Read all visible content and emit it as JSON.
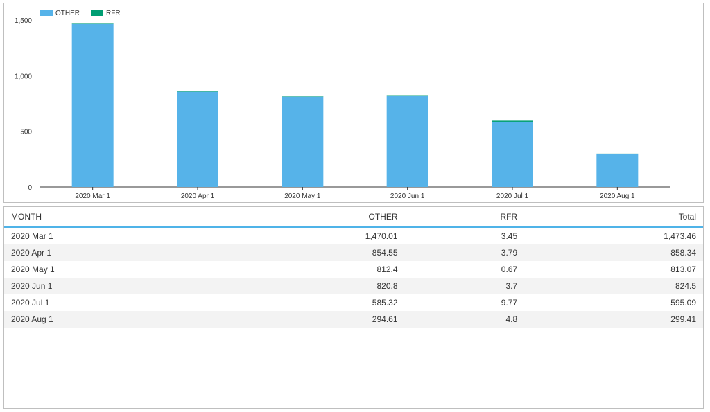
{
  "chart_data": {
    "type": "bar",
    "stacked": true,
    "categories": [
      "2020 Mar 1",
      "2020 Apr 1",
      "2020 May 1",
      "2020 Jun 1",
      "2020 Jul 1",
      "2020 Aug 1"
    ],
    "series": [
      {
        "name": "OTHER",
        "color": "#56b3e9",
        "values": [
          1470.01,
          854.55,
          812.4,
          820.8,
          585.32,
          294.61
        ]
      },
      {
        "name": "RFR",
        "color": "#009e73",
        "values": [
          3.45,
          3.79,
          0.67,
          3.7,
          9.77,
          4.8
        ]
      }
    ],
    "ylim": [
      0,
      1500
    ],
    "yticks": [
      0,
      500,
      1000,
      1500
    ],
    "ytick_labels": [
      "0",
      "500",
      "1,000",
      "1,500"
    ],
    "legend_position": "top-left",
    "grid": false
  },
  "table": {
    "columns": [
      "MONTH",
      "OTHER",
      "RFR",
      "Total"
    ],
    "rows": [
      [
        "2020 Mar 1",
        "1,470.01",
        "3.45",
        "1,473.46"
      ],
      [
        "2020 Apr 1",
        "854.55",
        "3.79",
        "858.34"
      ],
      [
        "2020 May 1",
        "812.4",
        "0.67",
        "813.07"
      ],
      [
        "2020 Jun 1",
        "820.8",
        "3.7",
        "824.5"
      ],
      [
        "2020 Jul 1",
        "585.32",
        "9.77",
        "595.09"
      ],
      [
        "2020 Aug 1",
        "294.61",
        "4.8",
        "299.41"
      ]
    ]
  }
}
